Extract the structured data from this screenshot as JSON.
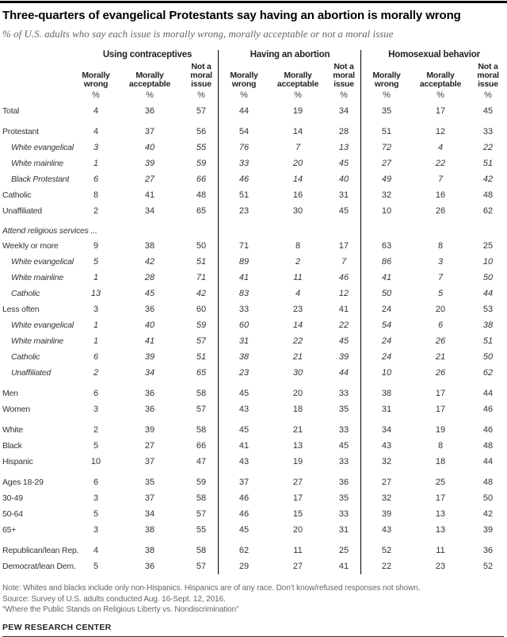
{
  "chart_data": {
    "type": "table",
    "title": "Three-quarters of evangelical Protestants say having an abortion is morally wrong",
    "subtitle": "% of U.S. adults who say each issue is morally wrong, morally acceptable or not a moral issue",
    "column_groups": [
      "Using contraceptives",
      "Having an abortion",
      "Homosexual behavior"
    ],
    "sub_columns": [
      "Morally wrong",
      "Morally acceptable",
      "Not a moral issue"
    ],
    "unit": "%",
    "rows": [
      {
        "label": "Total",
        "style": "normal",
        "values": [
          4,
          36,
          57,
          44,
          19,
          34,
          35,
          17,
          45
        ]
      },
      {
        "label": "Protestant",
        "style": "normal",
        "section_start": true,
        "values": [
          4,
          37,
          56,
          54,
          14,
          28,
          51,
          12,
          33
        ]
      },
      {
        "label": "White evangelical",
        "style": "sub",
        "values": [
          3,
          40,
          55,
          76,
          7,
          13,
          72,
          4,
          22
        ]
      },
      {
        "label": "White mainline",
        "style": "sub",
        "values": [
          1,
          39,
          59,
          33,
          20,
          45,
          27,
          22,
          51
        ]
      },
      {
        "label": "Black Protestant",
        "style": "sub",
        "values": [
          6,
          27,
          66,
          46,
          14,
          40,
          49,
          7,
          42
        ]
      },
      {
        "label": "Catholic",
        "style": "normal",
        "values": [
          8,
          41,
          48,
          51,
          16,
          31,
          32,
          16,
          48
        ]
      },
      {
        "label": "Unaffiliated",
        "style": "normal",
        "values": [
          2,
          34,
          65,
          23,
          30,
          45,
          10,
          26,
          62
        ]
      },
      {
        "label": "Attend religious services ...",
        "style": "section",
        "values": null
      },
      {
        "label": "Weekly or more",
        "style": "normal",
        "values": [
          9,
          38,
          50,
          71,
          8,
          17,
          63,
          8,
          25
        ]
      },
      {
        "label": "White evangelical",
        "style": "sub",
        "values": [
          5,
          42,
          51,
          89,
          2,
          7,
          86,
          3,
          10
        ]
      },
      {
        "label": "White mainline",
        "style": "sub",
        "values": [
          1,
          28,
          71,
          41,
          11,
          46,
          41,
          7,
          50
        ]
      },
      {
        "label": "Catholic",
        "style": "sub",
        "values": [
          13,
          45,
          42,
          83,
          4,
          12,
          50,
          5,
          44
        ]
      },
      {
        "label": "Less often",
        "style": "normal",
        "values": [
          3,
          36,
          60,
          33,
          23,
          41,
          24,
          20,
          53
        ]
      },
      {
        "label": "White evangelical",
        "style": "sub",
        "values": [
          1,
          40,
          59,
          60,
          14,
          22,
          54,
          6,
          38
        ]
      },
      {
        "label": "White mainline",
        "style": "sub",
        "values": [
          1,
          41,
          57,
          31,
          22,
          45,
          24,
          26,
          51
        ]
      },
      {
        "label": "Catholic",
        "style": "sub",
        "values": [
          6,
          39,
          51,
          38,
          21,
          39,
          24,
          21,
          50
        ]
      },
      {
        "label": "Unaffiliated",
        "style": "sub",
        "values": [
          2,
          34,
          65,
          23,
          30,
          44,
          10,
          26,
          62
        ]
      },
      {
        "label": "Men",
        "style": "normal",
        "section_start": true,
        "values": [
          6,
          36,
          58,
          45,
          20,
          33,
          38,
          17,
          44
        ]
      },
      {
        "label": "Women",
        "style": "normal",
        "values": [
          3,
          36,
          57,
          43,
          18,
          35,
          31,
          17,
          46
        ]
      },
      {
        "label": "White",
        "style": "normal",
        "section_start": true,
        "values": [
          2,
          39,
          58,
          45,
          21,
          33,
          34,
          19,
          46
        ]
      },
      {
        "label": "Black",
        "style": "normal",
        "values": [
          5,
          27,
          66,
          41,
          13,
          45,
          43,
          8,
          48
        ]
      },
      {
        "label": "Hispanic",
        "style": "normal",
        "values": [
          10,
          37,
          47,
          43,
          19,
          33,
          32,
          18,
          44
        ]
      },
      {
        "label": "Ages 18-29",
        "style": "normal",
        "section_start": true,
        "values": [
          6,
          35,
          59,
          37,
          27,
          36,
          27,
          25,
          48
        ]
      },
      {
        "label": "30-49",
        "style": "normal",
        "values": [
          3,
          37,
          58,
          46,
          17,
          35,
          32,
          17,
          50
        ]
      },
      {
        "label": "50-64",
        "style": "normal",
        "values": [
          5,
          34,
          57,
          46,
          15,
          33,
          39,
          13,
          42
        ]
      },
      {
        "label": "65+",
        "style": "normal",
        "values": [
          3,
          38,
          55,
          45,
          20,
          31,
          43,
          13,
          39
        ]
      },
      {
        "label": "Republican/lean Rep.",
        "style": "normal",
        "section_start": true,
        "values": [
          4,
          38,
          58,
          62,
          11,
          25,
          52,
          11,
          36
        ]
      },
      {
        "label": "Democrat/lean Dem.",
        "style": "normal",
        "values": [
          5,
          36,
          57,
          29,
          27,
          41,
          22,
          23,
          52
        ]
      }
    ]
  },
  "footer": {
    "note": "Note: Whites and blacks include only non-Hispanics. Hispanics are of any race. Don’t know/refused responses not shown.",
    "source": "Source: Survey of U.S. adults conducted Aug. 16-Sept. 12, 2016.",
    "report": "“Where the Public Stands on Religious Liberty vs. Nondiscrimination”",
    "brand": "PEW RESEARCH CENTER"
  }
}
